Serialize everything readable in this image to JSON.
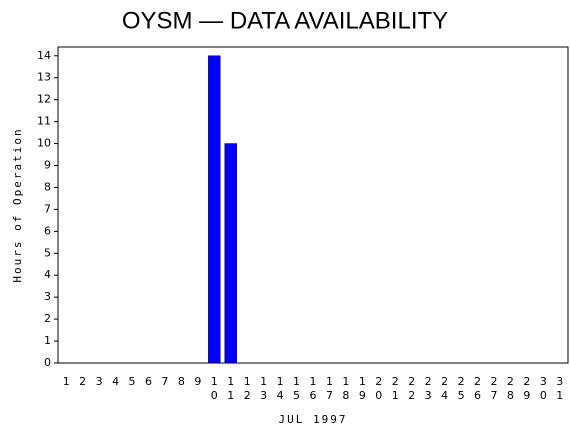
{
  "chart_data": {
    "type": "bar",
    "title": "OYSM — DATA AVAILABILITY",
    "x_label": "JUL 1997",
    "y_label": "Hours of Operation",
    "categories": [
      "1",
      "2",
      "3",
      "4",
      "5",
      "6",
      "7",
      "8",
      "9",
      "10",
      "11",
      "12",
      "13",
      "14",
      "15",
      "16",
      "17",
      "18",
      "19",
      "20",
      "21",
      "22",
      "23",
      "24",
      "25",
      "26",
      "27",
      "28",
      "29",
      "30",
      "31"
    ],
    "values": [
      0,
      0,
      0,
      0,
      0,
      0,
      0,
      0,
      0,
      14,
      10,
      0,
      0,
      0,
      0,
      0,
      0,
      0,
      0,
      0,
      0,
      0,
      0,
      0,
      0,
      0,
      0,
      0,
      0,
      0,
      0
    ],
    "color": "#0000ff",
    "ylim": [
      0,
      14.4
    ],
    "yticks": [
      0,
      1,
      2,
      3,
      4,
      5,
      6,
      7,
      8,
      9,
      10,
      11,
      12,
      13,
      14
    ],
    "grid": false
  }
}
